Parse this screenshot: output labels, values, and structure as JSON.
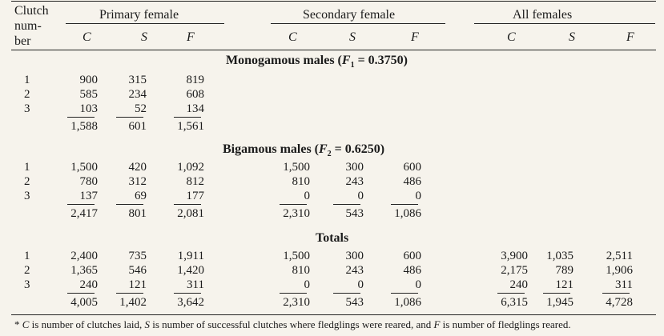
{
  "table": {
    "clutch_header_1": "Clutch",
    "clutch_header_2": "num-",
    "clutch_header_3": "ber",
    "groups": [
      "Primary female",
      "Secondary female",
      "All females"
    ],
    "col_letters": [
      "C",
      "S",
      "F",
      "C",
      "S",
      "F",
      "C",
      "S",
      "F"
    ],
    "sections": [
      {
        "title_prefix": "Monogamous males (",
        "sub": "1",
        "title_suffix": " = 0.3750)",
        "rows": [
          {
            "label": "1",
            "values": [
              "900",
              "315",
              "819",
              "",
              "",
              "",
              "",
              "",
              ""
            ]
          },
          {
            "label": "2",
            "values": [
              "585",
              "234",
              "608",
              "",
              "",
              "",
              "",
              "",
              ""
            ]
          },
          {
            "label": "3",
            "values": [
              "103",
              "52",
              "134",
              "",
              "",
              "",
              "",
              "",
              ""
            ]
          }
        ],
        "total": [
          "1,588",
          "601",
          "1,561",
          "",
          "",
          "",
          "",
          "",
          ""
        ]
      },
      {
        "title_prefix": "Bigamous males (",
        "sub": "2",
        "title_suffix": " = 0.6250)",
        "rows": [
          {
            "label": "1",
            "values": [
              "1,500",
              "420",
              "1,092",
              "1,500",
              "300",
              "600",
              "",
              "",
              ""
            ]
          },
          {
            "label": "2",
            "values": [
              "780",
              "312",
              "812",
              "810",
              "243",
              "486",
              "",
              "",
              ""
            ]
          },
          {
            "label": "3",
            "values": [
              "137",
              "69",
              "177",
              "0",
              "0",
              "0",
              "",
              "",
              ""
            ]
          }
        ],
        "total": [
          "2,417",
          "801",
          "2,081",
          "2,310",
          "543",
          "1,086",
          "",
          "",
          ""
        ]
      },
      {
        "title_prefix": "Totals",
        "rows": [
          {
            "label": "1",
            "values": [
              "2,400",
              "735",
              "1,911",
              "1,500",
              "300",
              "600",
              "3,900",
              "1,035",
              "2,511"
            ]
          },
          {
            "label": "2",
            "values": [
              "1,365",
              "546",
              "1,420",
              "810",
              "243",
              "486",
              "2,175",
              "789",
              "1,906"
            ]
          },
          {
            "label": "3",
            "values": [
              "240",
              "121",
              "311",
              "0",
              "0",
              "0",
              "240",
              "121",
              "311"
            ]
          }
        ],
        "total": [
          "4,005",
          "1,402",
          "3,642",
          "2,310",
          "543",
          "1,086",
          "6,315",
          "1,945",
          "4,728"
        ]
      }
    ]
  },
  "footnote": {
    "marker": "* ",
    "part1": " is number of clutches laid, ",
    "part2": " is number of successful clutches where fledglings were reared, and ",
    "part3": " is number of fledglings reared."
  }
}
